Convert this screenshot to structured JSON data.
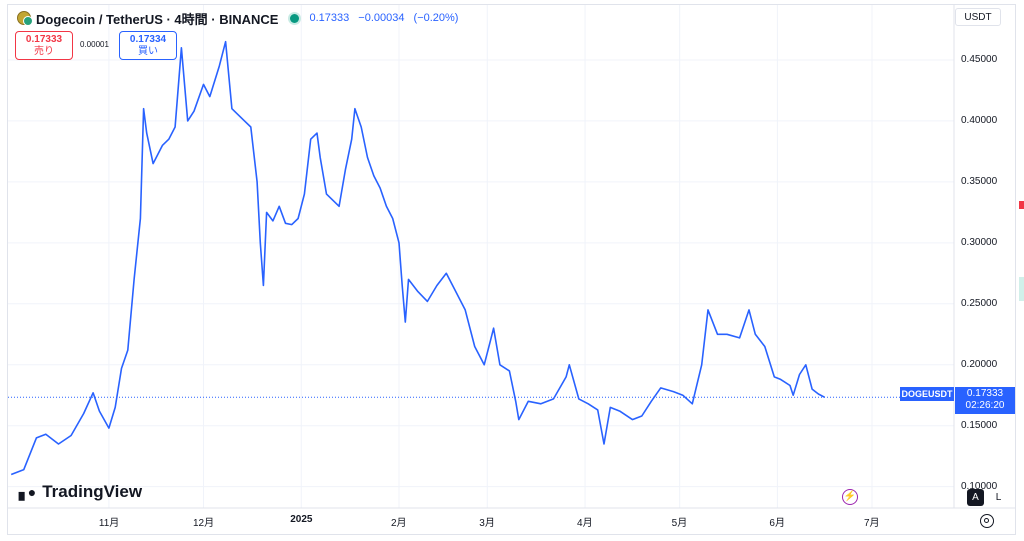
{
  "header": {
    "title": "Dogecoin / TetherUS · 4時間 · BINANCE",
    "last_price": "0.17333",
    "change": "−0.00034",
    "change_pct": "(−0.20%)"
  },
  "trade": {
    "sell_price": "0.17333",
    "sell_label": "売り",
    "spread": "0.00001",
    "buy_price": "0.17334",
    "buy_label": "買い"
  },
  "axis": {
    "currency": "USDT",
    "auto_label": "A",
    "log_label": "L"
  },
  "price_tag": {
    "symbol": "DOGEUSDT",
    "price": "0.17333",
    "countdown": "02:26:20"
  },
  "branding": {
    "logo_text": "TradingView"
  },
  "colors": {
    "line": "#2962ff",
    "sell": "#f23645",
    "buy": "#2962ff",
    "grid": "#f0f3fa"
  },
  "chart_data": {
    "type": "line",
    "series": [
      {
        "name": "DOGEUSDT",
        "points": [
          [
            "2024-10-01",
            0.11
          ],
          [
            "2024-10-05",
            0.114
          ],
          [
            "2024-10-09",
            0.14
          ],
          [
            "2024-10-12",
            0.143
          ],
          [
            "2024-10-16",
            0.135
          ],
          [
            "2024-10-20",
            0.142
          ],
          [
            "2024-10-24",
            0.16
          ],
          [
            "2024-10-27",
            0.177
          ],
          [
            "2024-10-29",
            0.162
          ],
          [
            "2024-11-01",
            0.148
          ],
          [
            "2024-11-03",
            0.165
          ],
          [
            "2024-11-05",
            0.197
          ],
          [
            "2024-11-07",
            0.212
          ],
          [
            "2024-11-09",
            0.27
          ],
          [
            "2024-11-11",
            0.32
          ],
          [
            "2024-11-12",
            0.41
          ],
          [
            "2024-11-13",
            0.39
          ],
          [
            "2024-11-15",
            0.365
          ],
          [
            "2024-11-18",
            0.38
          ],
          [
            "2024-11-20",
            0.385
          ],
          [
            "2024-11-22",
            0.395
          ],
          [
            "2024-11-24",
            0.46
          ],
          [
            "2024-11-26",
            0.4
          ],
          [
            "2024-11-28",
            0.408
          ],
          [
            "2024-12-01",
            0.43
          ],
          [
            "2024-12-03",
            0.42
          ],
          [
            "2024-12-06",
            0.445
          ],
          [
            "2024-12-08",
            0.465
          ],
          [
            "2024-12-10",
            0.41
          ],
          [
            "2024-12-12",
            0.405
          ],
          [
            "2024-12-14",
            0.4
          ],
          [
            "2024-12-16",
            0.395
          ],
          [
            "2024-12-18",
            0.35
          ],
          [
            "2024-12-19",
            0.3
          ],
          [
            "2024-12-20",
            0.265
          ],
          [
            "2024-12-21",
            0.325
          ],
          [
            "2024-12-23",
            0.318
          ],
          [
            "2024-12-25",
            0.33
          ],
          [
            "2024-12-27",
            0.316
          ],
          [
            "2024-12-29",
            0.315
          ],
          [
            "2024-12-31",
            0.32
          ],
          [
            "2025-01-02",
            0.34
          ],
          [
            "2025-01-04",
            0.385
          ],
          [
            "2025-01-06",
            0.39
          ],
          [
            "2025-01-07",
            0.37
          ],
          [
            "2025-01-09",
            0.34
          ],
          [
            "2025-01-11",
            0.335
          ],
          [
            "2025-01-13",
            0.33
          ],
          [
            "2025-01-15",
            0.36
          ],
          [
            "2025-01-17",
            0.385
          ],
          [
            "2025-01-18",
            0.41
          ],
          [
            "2025-01-20",
            0.395
          ],
          [
            "2025-01-22",
            0.37
          ],
          [
            "2025-01-24",
            0.355
          ],
          [
            "2025-01-26",
            0.345
          ],
          [
            "2025-01-28",
            0.33
          ],
          [
            "2025-01-30",
            0.32
          ],
          [
            "2025-02-01",
            0.3
          ],
          [
            "2025-02-02",
            0.265
          ],
          [
            "2025-02-03",
            0.235
          ],
          [
            "2025-02-04",
            0.27
          ],
          [
            "2025-02-07",
            0.26
          ],
          [
            "2025-02-10",
            0.252
          ],
          [
            "2025-02-13",
            0.265
          ],
          [
            "2025-02-16",
            0.275
          ],
          [
            "2025-02-19",
            0.26
          ],
          [
            "2025-02-22",
            0.245
          ],
          [
            "2025-02-25",
            0.215
          ],
          [
            "2025-02-28",
            0.2
          ],
          [
            "2025-03-02",
            0.22
          ],
          [
            "2025-03-03",
            0.23
          ],
          [
            "2025-03-05",
            0.2
          ],
          [
            "2025-03-08",
            0.195
          ],
          [
            "2025-03-10",
            0.17
          ],
          [
            "2025-03-11",
            0.155
          ],
          [
            "2025-03-14",
            0.17
          ],
          [
            "2025-03-18",
            0.168
          ],
          [
            "2025-03-22",
            0.172
          ],
          [
            "2025-03-26",
            0.19
          ],
          [
            "2025-03-27",
            0.2
          ],
          [
            "2025-03-30",
            0.172
          ],
          [
            "2025-04-02",
            0.168
          ],
          [
            "2025-04-05",
            0.163
          ],
          [
            "2025-04-07",
            0.135
          ],
          [
            "2025-04-09",
            0.165
          ],
          [
            "2025-04-12",
            0.162
          ],
          [
            "2025-04-16",
            0.155
          ],
          [
            "2025-04-19",
            0.158
          ],
          [
            "2025-04-22",
            0.17
          ],
          [
            "2025-04-25",
            0.181
          ],
          [
            "2025-04-29",
            0.178
          ],
          [
            "2025-05-02",
            0.175
          ],
          [
            "2025-05-05",
            0.168
          ],
          [
            "2025-05-08",
            0.2
          ],
          [
            "2025-05-10",
            0.245
          ],
          [
            "2025-05-13",
            0.225
          ],
          [
            "2025-05-16",
            0.225
          ],
          [
            "2025-05-20",
            0.222
          ],
          [
            "2025-05-23",
            0.245
          ],
          [
            "2025-05-25",
            0.225
          ],
          [
            "2025-05-28",
            0.215
          ],
          [
            "2025-05-31",
            0.19
          ],
          [
            "2025-06-02",
            0.188
          ],
          [
            "2025-06-05",
            0.183
          ],
          [
            "2025-06-06",
            0.175
          ],
          [
            "2025-06-08",
            0.192
          ],
          [
            "2025-06-10",
            0.2
          ],
          [
            "2025-06-12",
            0.18
          ],
          [
            "2025-06-14",
            0.176
          ],
          [
            "2025-06-16",
            0.17333
          ]
        ]
      }
    ],
    "x_ticks": [
      {
        "date": "2024-11-01",
        "label": "11月",
        "bold": false
      },
      {
        "date": "2024-12-01",
        "label": "12月",
        "bold": false
      },
      {
        "date": "2025-01-01",
        "label": "2025",
        "bold": true
      },
      {
        "date": "2025-02-01",
        "label": "2月",
        "bold": false
      },
      {
        "date": "2025-03-01",
        "label": "3月",
        "bold": false
      },
      {
        "date": "2025-04-01",
        "label": "4月",
        "bold": false
      },
      {
        "date": "2025-05-01",
        "label": "5月",
        "bold": false
      },
      {
        "date": "2025-06-01",
        "label": "6月",
        "bold": false
      },
      {
        "date": "2025-07-01",
        "label": "7月",
        "bold": false
      }
    ],
    "y_ticks": [
      "0.10000",
      "0.15000",
      "0.20000",
      "0.25000",
      "0.30000",
      "0.35000",
      "0.40000",
      "0.45000"
    ],
    "ylim": [
      0.0825,
      0.4951
    ],
    "xlim": [
      "2024-09-30",
      "2025-07-27"
    ],
    "grid": true,
    "last_value": 0.17333
  }
}
